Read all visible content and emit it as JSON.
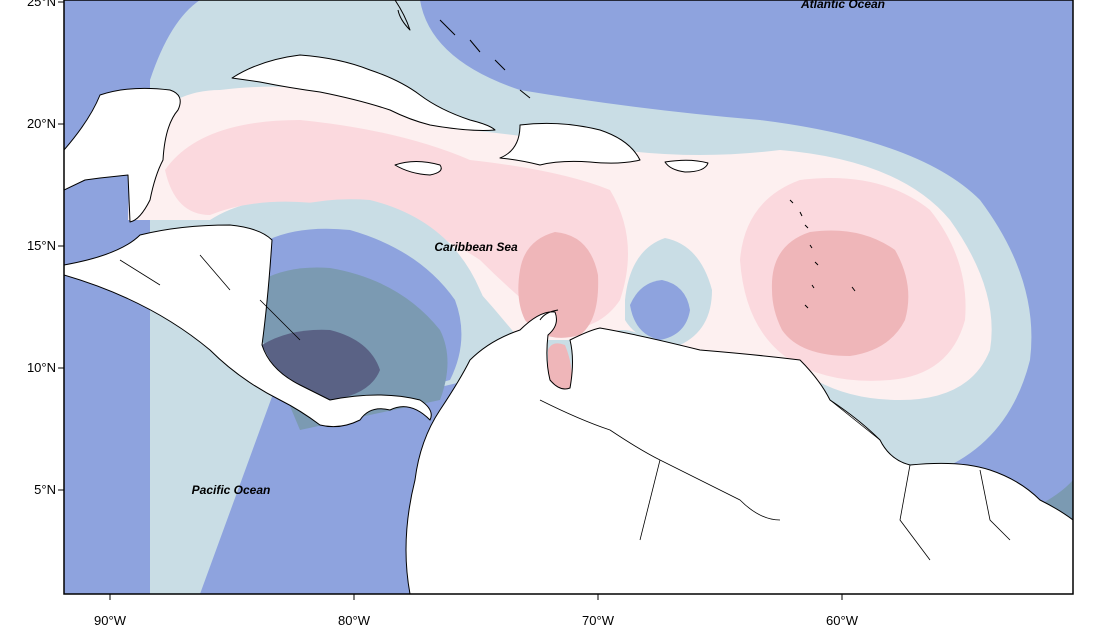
{
  "map": {
    "lat_ticks": [
      {
        "value": 25,
        "label": "25°N"
      },
      {
        "value": 20,
        "label": "20°N"
      },
      {
        "value": 15,
        "label": "15°N"
      },
      {
        "value": 10,
        "label": "10°N"
      },
      {
        "value": 5,
        "label": "5°N"
      }
    ],
    "lon_ticks": [
      {
        "value": -90,
        "label": "90°W"
      },
      {
        "value": -80,
        "label": "80°W"
      },
      {
        "value": -70,
        "label": "70°W"
      },
      {
        "value": -60,
        "label": "60°W"
      }
    ],
    "labels": {
      "atlantic": "Atlantic Ocean",
      "caribbean": "Caribbean Sea",
      "pacific": "Pacific Ocean"
    },
    "colors": {
      "strong_negative": "#5a6285",
      "negative": "#7b9ab2",
      "moderate_negative": "#8ea3de",
      "weak_negative": "#c9dde5",
      "weak_positive": "#fdf0f0",
      "moderate_positive": "#fbd9de",
      "strong_positive": "#efb6b9"
    }
  }
}
